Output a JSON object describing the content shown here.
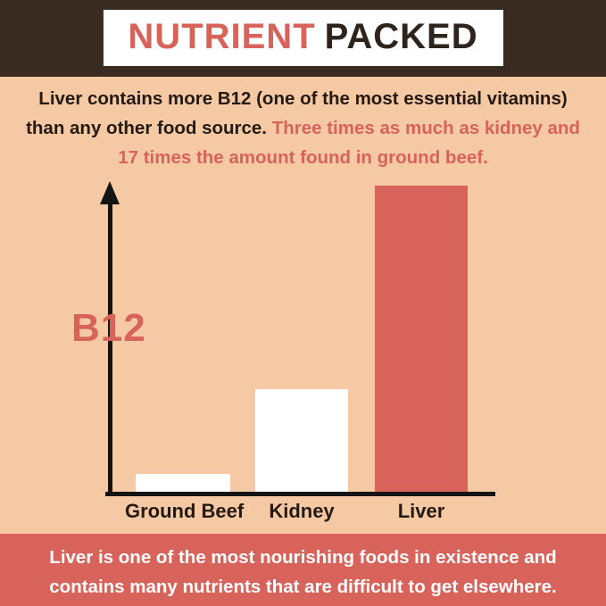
{
  "colors": {
    "banner_brown": "#3a2b20",
    "background_peach": "#f5c9a3",
    "accent_coral": "#d8635b",
    "text_dark": "#241a12",
    "bar_white": "#ffffff"
  },
  "header": {
    "title_part1": "NUTRIENT",
    "title_part2": "PACKED"
  },
  "intro": {
    "line1_dark": "Liver contains more B12 (one of the most essential vitamins)",
    "line2_dark": "than any other food source. ",
    "line2_coral": "Three times as much as kidney and",
    "line3_coral": "17 times the amount found in ground beef."
  },
  "chart_data": {
    "type": "bar",
    "title": "",
    "xlabel": "",
    "ylabel": "B12",
    "categories": [
      "Ground Beef",
      "Kidney",
      "Liver"
    ],
    "values": [
      1,
      5.7,
      17
    ],
    "ylim": [
      0,
      17
    ],
    "grid": false,
    "legend": "none",
    "bar_colors": [
      "#ffffff",
      "#ffffff",
      "#d8635b"
    ],
    "annotations": [
      "Liver has three times as much B12 as kidney",
      "Liver has 17 times the B12 found in ground beef"
    ]
  },
  "footer": {
    "line1": "Liver is one of the most nourishing foods in existence and",
    "line2": "contains many nutrients that are difficult to get elsewhere."
  }
}
